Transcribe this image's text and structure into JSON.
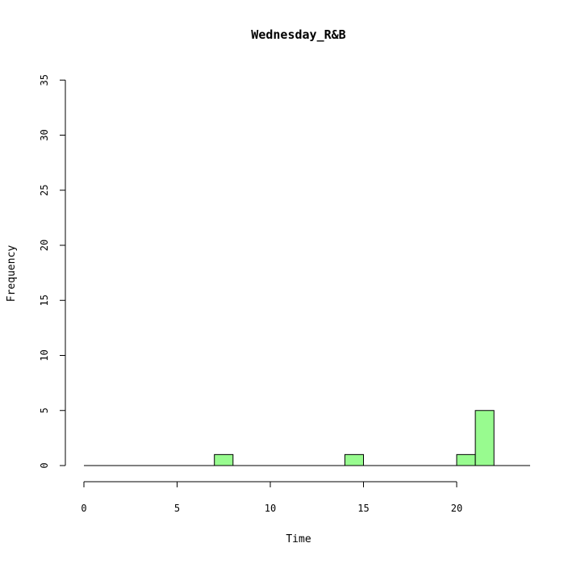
{
  "chart_data": {
    "type": "bar",
    "title": "Wednesday_R&B",
    "xlabel": "Time",
    "ylabel": "Frequency",
    "xlim": [
      0,
      23
    ],
    "ylim": [
      0,
      35
    ],
    "x_ticks": [
      0,
      5,
      10,
      15,
      20
    ],
    "y_ticks": [
      0,
      5,
      10,
      15,
      20,
      25,
      30,
      35
    ],
    "bins": [
      0,
      1,
      2,
      3,
      4,
      5,
      6,
      7,
      8,
      9,
      10,
      11,
      12,
      13,
      14,
      15,
      16,
      17,
      18,
      19,
      20,
      21,
      22
    ],
    "counts": [
      0,
      0,
      0,
      0,
      0,
      0,
      0,
      1,
      0,
      0,
      0,
      0,
      0,
      0,
      1,
      0,
      0,
      0,
      0,
      0,
      1,
      5
    ],
    "bar_color": "#98fb8f",
    "grid": false
  }
}
